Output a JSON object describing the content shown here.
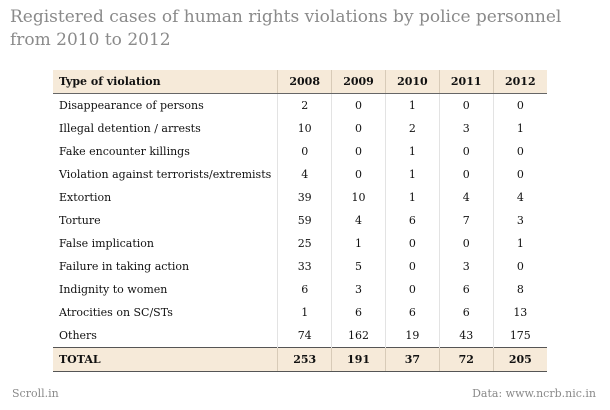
{
  "title": "Registered cases of human rights violations by police personnel from 2010 to 2012",
  "footer": {
    "source_left": "Scroll.in",
    "source_right": "Data: www.ncrb.nic.in"
  },
  "colors": {
    "header_bg": "#f6ead9",
    "title_color": "#8a8a8a"
  },
  "chart_data": {
    "type": "table",
    "title": "Registered cases of human rights violations by police personnel from 2010 to 2012",
    "columns": [
      "Type of violation",
      "2008",
      "2009",
      "2010",
      "2011",
      "2012"
    ],
    "rows": [
      {
        "label": "Disappearance of persons",
        "values": [
          2,
          0,
          1,
          0,
          0
        ]
      },
      {
        "label": "Illegal detention / arrests",
        "values": [
          10,
          0,
          2,
          3,
          1
        ]
      },
      {
        "label": "Fake encounter killings",
        "values": [
          0,
          0,
          1,
          0,
          0
        ]
      },
      {
        "label": "Violation against terrorists/extremists",
        "values": [
          4,
          0,
          1,
          0,
          0
        ]
      },
      {
        "label": "Extortion",
        "values": [
          39,
          10,
          1,
          4,
          4
        ]
      },
      {
        "label": "Torture",
        "values": [
          59,
          4,
          6,
          7,
          3
        ]
      },
      {
        "label": "False implication",
        "values": [
          25,
          1,
          0,
          0,
          1
        ]
      },
      {
        "label": "Failure in taking action",
        "values": [
          33,
          5,
          0,
          3,
          0
        ]
      },
      {
        "label": "Indignity to women",
        "values": [
          6,
          3,
          0,
          6,
          8
        ]
      },
      {
        "label": "Atrocities on SC/STs",
        "values": [
          1,
          6,
          6,
          6,
          13
        ]
      },
      {
        "label": "Others",
        "values": [
          74,
          162,
          19,
          43,
          175
        ]
      }
    ],
    "total": {
      "label": "TOTAL",
      "values": [
        253,
        191,
        37,
        72,
        205
      ]
    }
  }
}
